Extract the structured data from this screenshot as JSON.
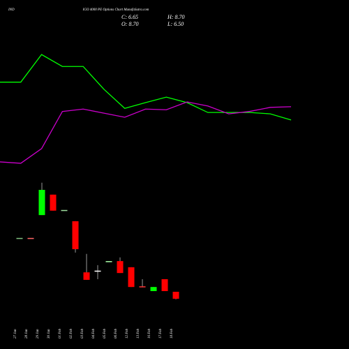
{
  "chart_data": {
    "type": "candlestick",
    "title_left": "IND",
    "title": "IGO 4000 PE Options Chart MunafaSutra.com",
    "ohlc_labels": [
      "C: 6.65",
      "H: 8.70",
      "O: 8.70",
      "L: 6.50"
    ],
    "ylim": [
      0,
      94.3
    ],
    "categories": [
      "27 Jan",
      "28 Jan",
      "29 Jan",
      "30 Jan",
      "01 Feb",
      "02 Feb",
      "03 Feb",
      "04 Feb",
      "05 Feb",
      "06 Feb",
      "12 Feb",
      "13 Feb",
      "16 Feb",
      "17 Feb",
      "18 Feb"
    ],
    "open": [
      24.5,
      24.5,
      31.2,
      37.2,
      32.7,
      29.4,
      14.4,
      14.9,
      17.7,
      17.7,
      15.9,
      10.3,
      8.9,
      12.4,
      8.7
    ],
    "high": [
      24.5,
      24.5,
      40.7,
      37.2,
      32.7,
      29.4,
      19.8,
      16.5,
      17.7,
      18.8,
      15.9,
      12.4,
      10.1,
      12.4,
      8.7
    ],
    "low": [
      24.5,
      24.5,
      31.2,
      32.5,
      32.7,
      20.2,
      12.2,
      12.4,
      17.7,
      14.2,
      10.1,
      10.0,
      8.9,
      8.9,
      6.5
    ],
    "close": [
      24.5,
      24.5,
      38.6,
      32.5,
      32.7,
      21.2,
      12.2,
      14.9,
      17.7,
      14.2,
      10.1,
      10.0,
      10.1,
      8.9,
      6.65
    ],
    "colors": [
      "#7fbf7f",
      "#ff6666",
      "#00ff00",
      "#ff0000",
      "#9fdf9f",
      "#ff0000",
      "#ff0000",
      "#ffffff",
      "#aaffaa",
      "#ff0000",
      "#ff0000",
      "#ff3333",
      "#00ff00",
      "#ff0000",
      "#ff0000"
    ],
    "wick_color": "#999999",
    "lines": [
      {
        "color": "#00ff00",
        "values": [
          70.2,
          70.2,
          78.3,
          74.8,
          74.8,
          68.1,
          62.5,
          64.2,
          65.8,
          64.2,
          61.3,
          61.3,
          61.3,
          60.9,
          59.1
        ]
      },
      {
        "color": "#cc00cc",
        "values": [
          46.8,
          46.4,
          50.7,
          61.6,
          62.3,
          61.1,
          59.9,
          62.3,
          62.1,
          64.4,
          63.2,
          60.9,
          61.6,
          62.8,
          63.0
        ]
      }
    ]
  }
}
